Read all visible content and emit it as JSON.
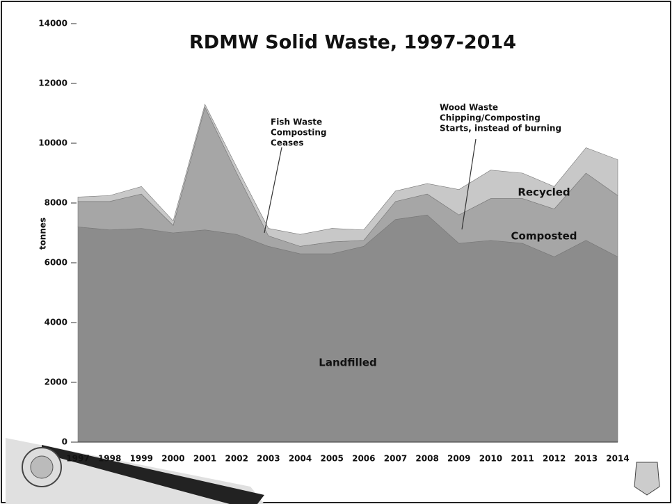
{
  "chart_data": {
    "type": "stacked_area",
    "title": "RDMW Solid Waste, 1997-2014",
    "y_label": "tonnes",
    "categories": [
      "1997",
      "1998",
      "1999",
      "2000",
      "2001",
      "2002",
      "2003",
      "2004",
      "2005",
      "2006",
      "2007",
      "2008",
      "2009",
      "2010",
      "2011",
      "2012",
      "2013",
      "2014"
    ],
    "series": [
      {
        "name": "Landfilled",
        "color": "#8c8c8c",
        "values": [
          7200,
          7100,
          7150,
          7000,
          7100,
          6950,
          6550,
          6300,
          6300,
          6550,
          7450,
          7600,
          6650,
          6750,
          6650,
          6200,
          6750,
          6200
        ]
      },
      {
        "name": "Composted",
        "color": "#a6a6a6",
        "values": [
          850,
          950,
          1150,
          250,
          4100,
          2050,
          350,
          250,
          400,
          200,
          600,
          700,
          950,
          1400,
          1500,
          1600,
          2250,
          2050
        ]
      },
      {
        "name": "Recycled",
        "color": "#c8c8c8",
        "values": [
          150,
          200,
          250,
          150,
          100,
          200,
          250,
          400,
          450,
          350,
          350,
          350,
          850,
          950,
          850,
          750,
          850,
          1200
        ]
      }
    ],
    "ylim": [
      0,
      14000
    ],
    "yticks": [
      0,
      2000,
      4000,
      6000,
      8000,
      10000,
      12000,
      14000
    ],
    "annotations": [
      {
        "lines": [
          "Fish Waste",
          "Composting",
          "Ceases"
        ]
      },
      {
        "lines": [
          "Wood Waste",
          "Chipping/Composting",
          "Starts, instead of burning"
        ]
      }
    ]
  }
}
